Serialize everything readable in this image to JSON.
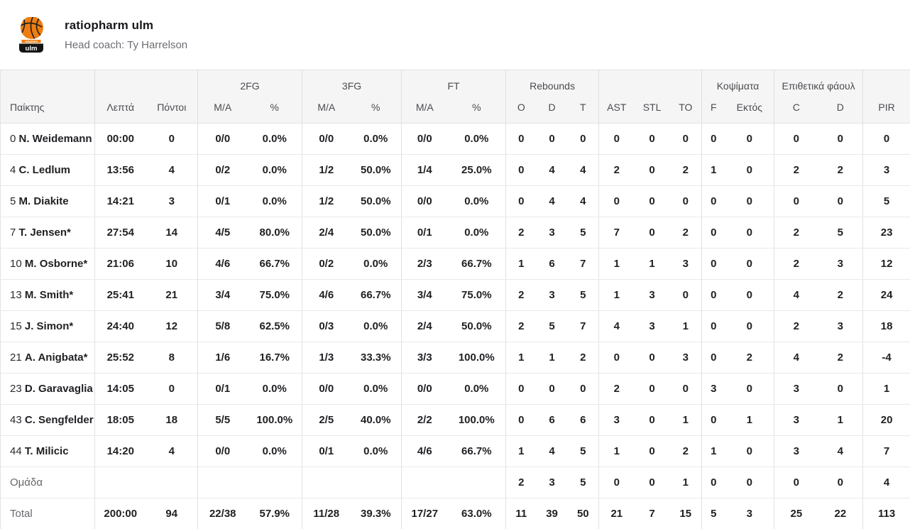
{
  "team": {
    "name": "ratiopharm ulm",
    "head_coach": "Head coach: Ty Harrelson",
    "logo_top": "ratiopharm",
    "logo_bottom": "ulm"
  },
  "colors": {
    "accent_orange": "#ee7d11",
    "header_bg": "#f5f5f6",
    "border": "#e2e2e4",
    "text_dark": "#1f2023",
    "text_muted": "#67686d"
  },
  "table": {
    "groups": {
      "fg2": "2FG",
      "fg3": "3FG",
      "ft": "FT",
      "rebounds": "Rebounds",
      "blocks": "Κοψίματα",
      "fouls": "Επιθετικά φάουλ"
    },
    "columns": [
      "Παίκτης",
      "Λεπτά",
      "Πόντοι",
      "M/A",
      "%",
      "M/A",
      "%",
      "M/A",
      "%",
      "O",
      "D",
      "T",
      "AST",
      "STL",
      "TO",
      "F",
      "Εκτός",
      "C",
      "D",
      "PIR"
    ],
    "rows": [
      {
        "num": "0",
        "name": "N. Weidemann",
        "cells": [
          "00:00",
          "0",
          "0/0",
          "0.0%",
          "0/0",
          "0.0%",
          "0/0",
          "0.0%",
          "0",
          "0",
          "0",
          "0",
          "0",
          "0",
          "0",
          "0",
          "0",
          "0",
          "0"
        ]
      },
      {
        "num": "4",
        "name": "C. Ledlum",
        "cells": [
          "13:56",
          "4",
          "0/2",
          "0.0%",
          "1/2",
          "50.0%",
          "1/4",
          "25.0%",
          "0",
          "4",
          "4",
          "2",
          "0",
          "2",
          "1",
          "0",
          "2",
          "2",
          "3"
        ]
      },
      {
        "num": "5",
        "name": "M. Diakite",
        "cells": [
          "14:21",
          "3",
          "0/1",
          "0.0%",
          "1/2",
          "50.0%",
          "0/0",
          "0.0%",
          "0",
          "4",
          "4",
          "0",
          "0",
          "0",
          "0",
          "0",
          "0",
          "0",
          "5"
        ]
      },
      {
        "num": "7",
        "name": "T. Jensen*",
        "cells": [
          "27:54",
          "14",
          "4/5",
          "80.0%",
          "2/4",
          "50.0%",
          "0/1",
          "0.0%",
          "2",
          "3",
          "5",
          "7",
          "0",
          "2",
          "0",
          "0",
          "2",
          "5",
          "23"
        ]
      },
      {
        "num": "10",
        "name": "M. Osborne*",
        "cells": [
          "21:06",
          "10",
          "4/6",
          "66.7%",
          "0/2",
          "0.0%",
          "2/3",
          "66.7%",
          "1",
          "6",
          "7",
          "1",
          "1",
          "3",
          "0",
          "0",
          "2",
          "3",
          "12"
        ]
      },
      {
        "num": "13",
        "name": "M. Smith*",
        "cells": [
          "25:41",
          "21",
          "3/4",
          "75.0%",
          "4/6",
          "66.7%",
          "3/4",
          "75.0%",
          "2",
          "3",
          "5",
          "1",
          "3",
          "0",
          "0",
          "0",
          "4",
          "2",
          "24"
        ]
      },
      {
        "num": "15",
        "name": "J. Simon*",
        "cells": [
          "24:40",
          "12",
          "5/8",
          "62.5%",
          "0/3",
          "0.0%",
          "2/4",
          "50.0%",
          "2",
          "5",
          "7",
          "4",
          "3",
          "1",
          "0",
          "0",
          "2",
          "3",
          "18"
        ]
      },
      {
        "num": "21",
        "name": "A. Anigbata*",
        "cells": [
          "25:52",
          "8",
          "1/6",
          "16.7%",
          "1/3",
          "33.3%",
          "3/3",
          "100.0%",
          "1",
          "1",
          "2",
          "0",
          "0",
          "3",
          "0",
          "2",
          "4",
          "2",
          "-4"
        ]
      },
      {
        "num": "23",
        "name": "D. Garavaglia",
        "cells": [
          "14:05",
          "0",
          "0/1",
          "0.0%",
          "0/0",
          "0.0%",
          "0/0",
          "0.0%",
          "0",
          "0",
          "0",
          "2",
          "0",
          "0",
          "3",
          "0",
          "3",
          "0",
          "1"
        ]
      },
      {
        "num": "43",
        "name": "C. Sengfelder",
        "cells": [
          "18:05",
          "18",
          "5/5",
          "100.0%",
          "2/5",
          "40.0%",
          "2/2",
          "100.0%",
          "0",
          "6",
          "6",
          "3",
          "0",
          "1",
          "0",
          "1",
          "3",
          "1",
          "20"
        ]
      },
      {
        "num": "44",
        "name": "T. Milicic",
        "cells": [
          "14:20",
          "4",
          "0/0",
          "0.0%",
          "0/1",
          "0.0%",
          "4/6",
          "66.7%",
          "1",
          "4",
          "5",
          "1",
          "0",
          "2",
          "1",
          "0",
          "3",
          "4",
          "7"
        ]
      },
      {
        "label": "Ομάδα",
        "cells": [
          "",
          "",
          "",
          "",
          "",
          "",
          "",
          "",
          "2",
          "3",
          "5",
          "0",
          "0",
          "1",
          "0",
          "0",
          "0",
          "0",
          "4"
        ]
      },
      {
        "label": "Total",
        "total": true,
        "cells": [
          "200:00",
          "94",
          "22/38",
          "57.9%",
          "11/28",
          "39.3%",
          "17/27",
          "63.0%",
          "11",
          "39",
          "50",
          "21",
          "7",
          "15",
          "5",
          "3",
          "25",
          "22",
          "113"
        ]
      }
    ]
  }
}
